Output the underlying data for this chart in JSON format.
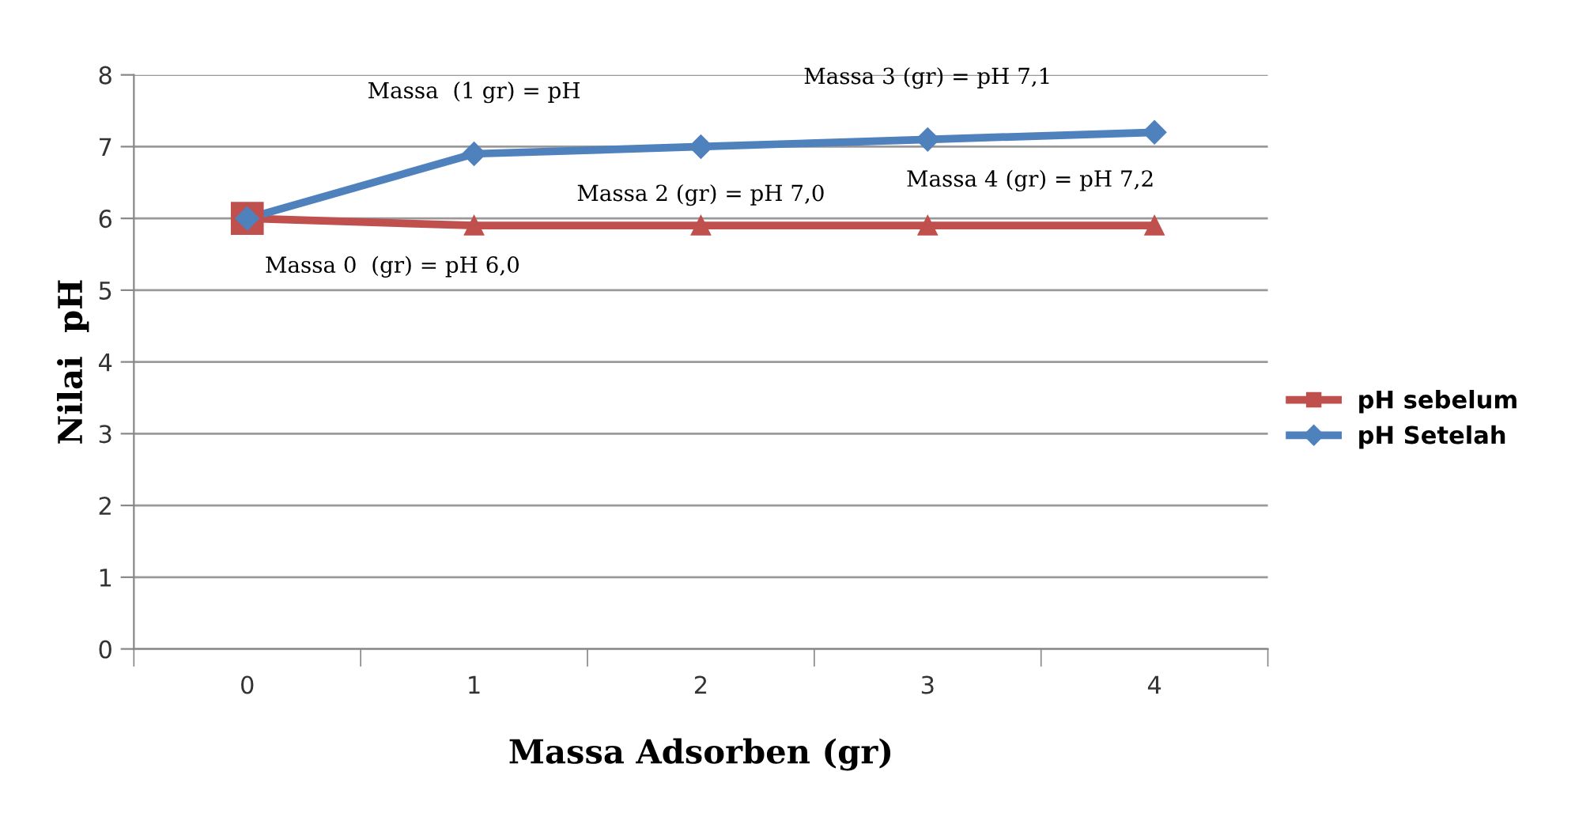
{
  "chart_data": {
    "type": "line",
    "xlabel": "Massa Adsorben (gr)",
    "ylabel": "Nilai  pH",
    "categories": [
      "0",
      "1",
      "2",
      "3",
      "4"
    ],
    "series": [
      {
        "name": "pH sebelum",
        "color": "#c0504d",
        "values": [
          6.0,
          5.9,
          5.9,
          5.9,
          5.9
        ],
        "marker": [
          "square",
          "triangle",
          "triangle",
          "triangle",
          "triangle"
        ]
      },
      {
        "name": "pH Setelah",
        "color": "#4f81bd",
        "values": [
          6.0,
          6.9,
          7.0,
          7.1,
          7.2
        ],
        "marker": "diamond"
      }
    ],
    "annotations": [
      {
        "text": "Massa 0  (gr) = pH 6,0",
        "x": "0",
        "y": 6.0
      },
      {
        "text": "Massa  (1 gr) = pH",
        "x": "1",
        "y": 6.9
      },
      {
        "text": "Massa 2 (gr) = pH 7,0",
        "x": "2",
        "y": 7.0
      },
      {
        "text": "Massa 3 (gr) = pH 7,1",
        "x": "3",
        "y": 7.1
      },
      {
        "text": "Massa 4 (gr) = pH 7,2",
        "x": "4",
        "y": 7.2
      }
    ],
    "ylim": [
      0,
      8
    ],
    "yticks": [
      0,
      1,
      2,
      3,
      4,
      5,
      6,
      7,
      8
    ],
    "grid": "y",
    "legend": "right"
  }
}
